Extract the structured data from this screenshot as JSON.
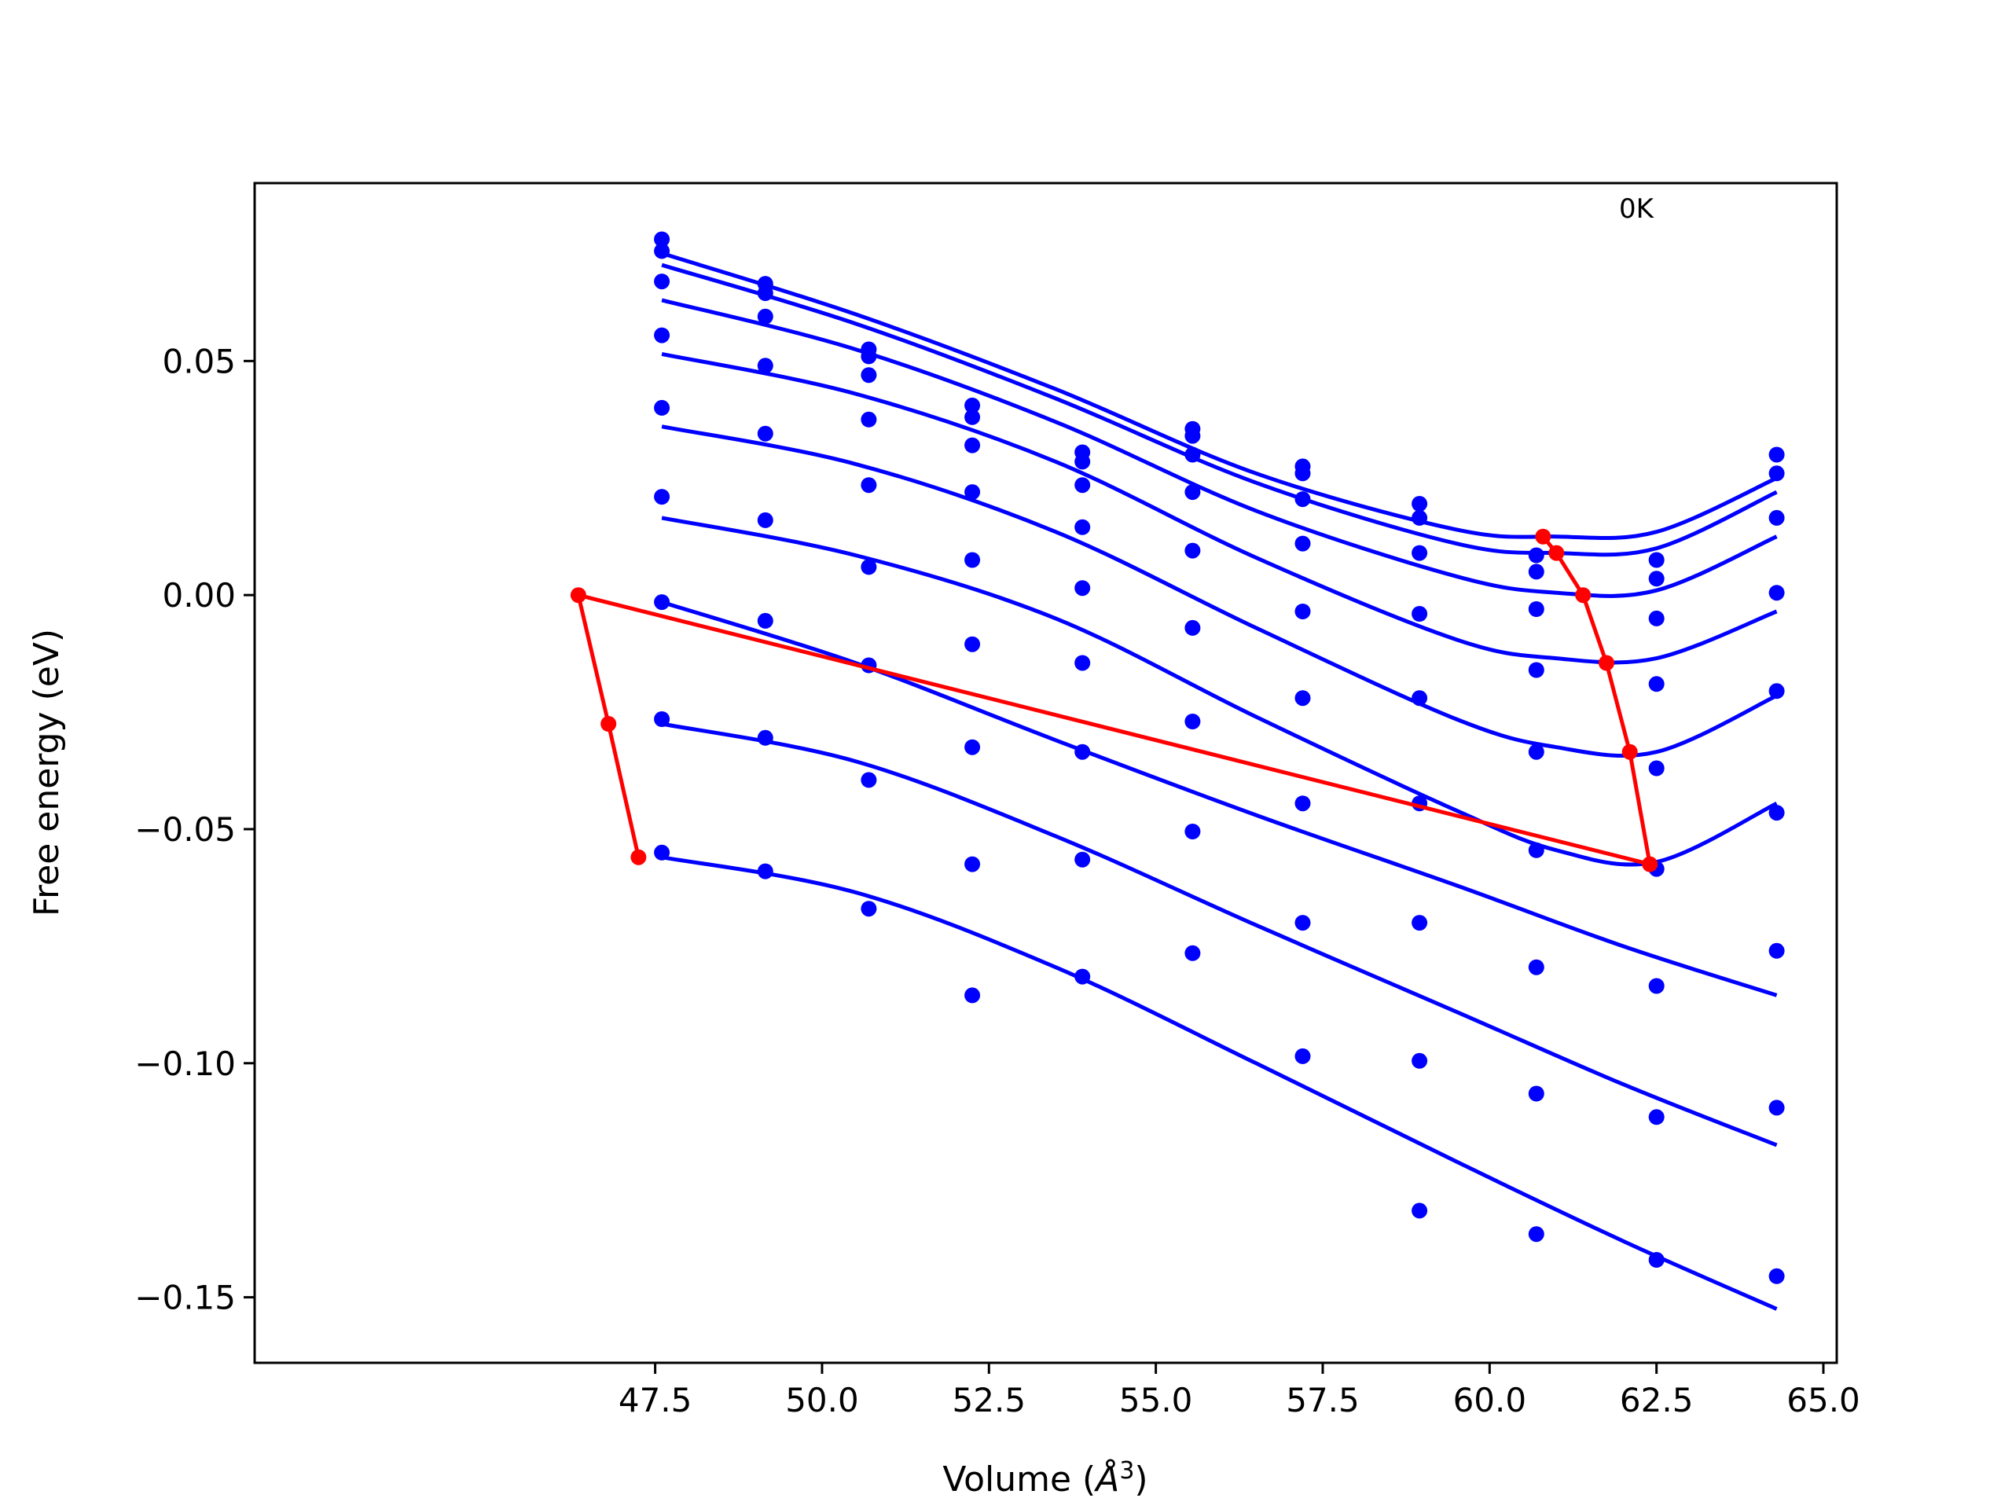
{
  "chart_data": {
    "type": "scatter",
    "xlabel_prefix": "Volume (",
    "xlabel_unit": "Å",
    "xlabel_power": "3",
    "xlabel_suffix": ")",
    "ylabel": "Free energy (eV)",
    "xlim": [
      41.5,
      65.2
    ],
    "ylim": [
      -0.164,
      0.088
    ],
    "xticks": [
      47.5,
      50.0,
      52.5,
      55.0,
      57.5,
      60.0,
      62.5,
      65.0
    ],
    "xtick_labels": [
      "47.5",
      "50.0",
      "52.5",
      "55.0",
      "57.5",
      "60.0",
      "62.5",
      "65.0"
    ],
    "yticks": [
      0.05,
      0.0,
      -0.05,
      -0.1,
      -0.15
    ],
    "ytick_labels": [
      "0.05",
      "0.00",
      "−0.05",
      "−0.10",
      "−0.15"
    ],
    "annotation": "0K",
    "grid": false,
    "colors": {
      "points": "#0000ff",
      "fits": "#0000ff",
      "path": "#ff0000"
    },
    "volumes": [
      47.6,
      49.15,
      50.7,
      52.25,
      53.9,
      55.55,
      57.2,
      58.95,
      60.7,
      62.5,
      64.3
    ],
    "point_series": [
      [
        0.076,
        0.0665,
        0.0525,
        0.0405,
        0.0305,
        0.0355,
        0.0275,
        0.0195,
        0.0085,
        0.0075,
        0.03
      ],
      [
        0.0735,
        0.0645,
        0.051,
        0.038,
        0.0285,
        0.034,
        0.026,
        0.0165,
        0.005,
        0.0035,
        0.026
      ],
      [
        0.067,
        0.0595,
        0.047,
        0.032,
        0.0235,
        0.03,
        0.0205,
        0.009,
        -0.003,
        -0.005,
        0.0165
      ],
      [
        0.0555,
        0.049,
        0.0375,
        0.022,
        0.0145,
        0.022,
        0.011,
        -0.004,
        -0.016,
        -0.019,
        0.0005
      ],
      [
        0.04,
        0.0345,
        0.0235,
        0.0075,
        0.0015,
        0.0095,
        -0.0035,
        -0.022,
        -0.0335,
        -0.037,
        -0.0205
      ],
      [
        0.021,
        0.016,
        0.006,
        -0.0105,
        -0.0145,
        -0.007,
        -0.022,
        -0.0445,
        -0.0545,
        -0.0585,
        -0.0465
      ],
      [
        -0.0015,
        -0.0055,
        -0.015,
        -0.0325,
        -0.0335,
        -0.027,
        -0.0445,
        -0.07,
        -0.0795,
        -0.0835,
        -0.076
      ],
      [
        -0.0265,
        -0.0305,
        -0.0395,
        -0.0575,
        -0.0565,
        -0.0505,
        -0.07,
        -0.0995,
        -0.1065,
        -0.1115,
        -0.1095
      ],
      [
        -0.055,
        -0.059,
        -0.067,
        -0.0855,
        -0.0815,
        -0.0765,
        -0.0985,
        -0.1315,
        -0.1365,
        -0.142,
        -0.1455
      ]
    ],
    "fit_curves": [
      {
        "x": [
          47.6,
          50.5,
          53.5,
          56.5,
          59.5,
          61.0,
          62.5,
          64.3
        ],
        "y": [
          0.073,
          0.06,
          0.044,
          0.026,
          0.014,
          0.0125,
          0.0135,
          0.025
        ]
      },
      {
        "x": [
          47.6,
          50.5,
          53.5,
          56.5,
          59.5,
          61.0,
          62.5,
          64.3
        ],
        "y": [
          0.0705,
          0.058,
          0.042,
          0.024,
          0.011,
          0.009,
          0.01,
          0.022
        ]
      },
      {
        "x": [
          47.6,
          50.5,
          53.5,
          56.5,
          59.5,
          61.0,
          62.5,
          64.3
        ],
        "y": [
          0.063,
          0.0525,
          0.037,
          0.018,
          0.004,
          0.0005,
          0.001,
          0.0125
        ]
      },
      {
        "x": [
          47.6,
          50.5,
          53.5,
          56.5,
          59.5,
          61.0,
          62.5,
          64.3
        ],
        "y": [
          0.0515,
          0.043,
          0.0285,
          0.008,
          -0.0095,
          -0.0135,
          -0.0135,
          -0.0035
        ]
      },
      {
        "x": [
          47.6,
          50.5,
          53.5,
          56.5,
          59.5,
          61.0,
          62.5,
          64.3
        ],
        "y": [
          0.036,
          0.028,
          0.0135,
          -0.007,
          -0.0265,
          -0.0325,
          -0.0335,
          -0.0215
        ]
      },
      {
        "x": [
          47.6,
          50.5,
          53.5,
          56.5,
          59.5,
          61.0,
          62.5,
          64.3
        ],
        "y": [
          0.0165,
          0.0085,
          -0.005,
          -0.026,
          -0.046,
          -0.0545,
          -0.057,
          -0.0445
        ]
      },
      {
        "x": [
          47.6,
          50.5,
          53.5,
          56.5,
          59.5,
          62.0,
          64.3
        ],
        "y": [
          -0.0015,
          -0.0145,
          -0.031,
          -0.047,
          -0.062,
          -0.075,
          -0.0855
        ]
      },
      {
        "x": [
          47.6,
          50.5,
          53.5,
          56.5,
          59.5,
          62.0,
          64.3
        ],
        "y": [
          -0.0275,
          -0.0355,
          -0.0515,
          -0.0705,
          -0.089,
          -0.1045,
          -0.1175
        ]
      },
      {
        "x": [
          47.6,
          50.5,
          53.5,
          56.5,
          59.5,
          62.0,
          64.3
        ],
        "y": [
          -0.056,
          -0.0635,
          -0.0795,
          -0.1,
          -0.121,
          -0.138,
          -0.1525
        ]
      }
    ],
    "path": {
      "x": [
        47.25,
        46.8,
        46.35,
        62.4,
        62.1,
        61.75,
        61.4,
        61.0,
        60.8
      ],
      "y": [
        -0.056,
        -0.0275,
        0.0,
        -0.0575,
        -0.0335,
        -0.0145,
        0.0,
        0.009,
        0.0125
      ]
    }
  }
}
